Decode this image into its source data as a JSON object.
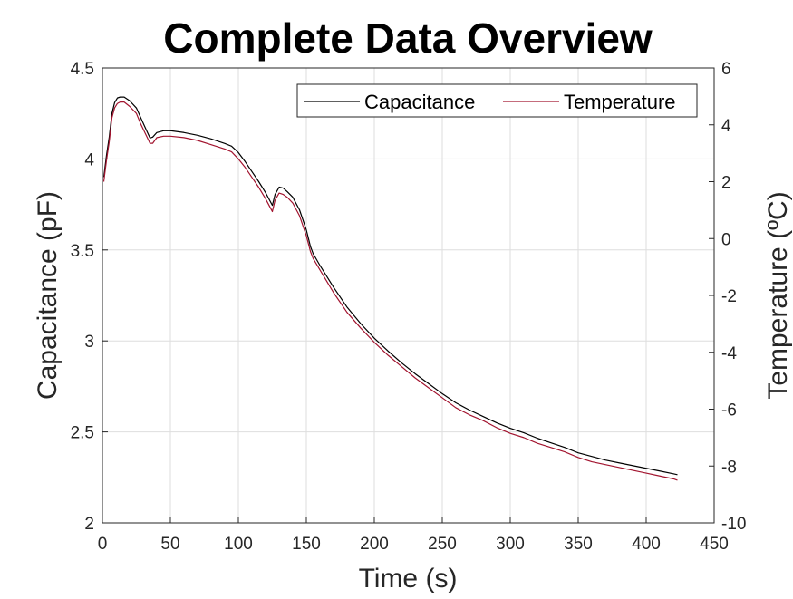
{
  "chart_data": {
    "type": "line",
    "title": "Complete Data Overview",
    "xlabel": "Time (s)",
    "ylabel_left": "Capacitance (pF)",
    "ylabel_right": "Temperature (ºC)",
    "xlim": [
      0,
      450
    ],
    "ylim_left": [
      2,
      4.5
    ],
    "ylim_right": [
      -10,
      6
    ],
    "x_ticks": [
      "0",
      "50",
      "100",
      "150",
      "200",
      "250",
      "300",
      "350",
      "400",
      "450"
    ],
    "y_left_ticks": [
      "2",
      "2.5",
      "3",
      "3.5",
      "4",
      "4.5"
    ],
    "y_right_ticks": [
      "-10",
      "-8",
      "-6",
      "-4",
      "-2",
      "0",
      "2",
      "4",
      "6"
    ],
    "grid": true,
    "legend_position": "top-right",
    "series": [
      {
        "name": "Capacitance",
        "axis": "left",
        "color": "#000000",
        "x": [
          1,
          3,
          5,
          7,
          9,
          11,
          13,
          16,
          20,
          25,
          28,
          31,
          35,
          37,
          40,
          45,
          50,
          60,
          70,
          80,
          90,
          95,
          100,
          105,
          110,
          115,
          120,
          125,
          127,
          130,
          133,
          136,
          140,
          145,
          150,
          153,
          155,
          160,
          170,
          180,
          190,
          200,
          210,
          220,
          230,
          240,
          250,
          260,
          270,
          280,
          290,
          300,
          310,
          320,
          330,
          340,
          350,
          360,
          370,
          380,
          390,
          400,
          410,
          420,
          423
        ],
        "values": [
          3.9,
          4.02,
          4.12,
          4.25,
          4.31,
          4.335,
          4.34,
          4.34,
          4.32,
          4.28,
          4.23,
          4.18,
          4.115,
          4.12,
          4.145,
          4.155,
          4.155,
          4.145,
          4.13,
          4.11,
          4.085,
          4.07,
          4.035,
          3.985,
          3.93,
          3.875,
          3.815,
          3.745,
          3.805,
          3.845,
          3.84,
          3.82,
          3.79,
          3.72,
          3.61,
          3.52,
          3.48,
          3.415,
          3.295,
          3.185,
          3.095,
          3.015,
          2.945,
          2.88,
          2.82,
          2.765,
          2.71,
          2.66,
          2.62,
          2.585,
          2.55,
          2.52,
          2.495,
          2.465,
          2.44,
          2.415,
          2.385,
          2.365,
          2.345,
          2.33,
          2.315,
          2.3,
          2.285,
          2.27,
          2.265
        ]
      },
      {
        "name": "Temperature",
        "axis": "right",
        "color": "#A2142F",
        "x": [
          1,
          3,
          5,
          7,
          9,
          11,
          13,
          16,
          20,
          25,
          28,
          31,
          35,
          37,
          40,
          45,
          50,
          60,
          70,
          80,
          90,
          95,
          100,
          105,
          110,
          115,
          120,
          125,
          127,
          130,
          133,
          136,
          140,
          145,
          150,
          153,
          155,
          160,
          170,
          180,
          190,
          200,
          210,
          220,
          230,
          240,
          250,
          260,
          270,
          280,
          290,
          300,
          310,
          320,
          330,
          340,
          350,
          360,
          370,
          380,
          390,
          400,
          410,
          420,
          423
        ],
        "values": [
          2.0,
          2.75,
          3.4,
          4.25,
          4.6,
          4.75,
          4.8,
          4.8,
          4.65,
          4.4,
          4.05,
          3.75,
          3.35,
          3.35,
          3.55,
          3.6,
          3.6,
          3.55,
          3.45,
          3.3,
          3.15,
          3.05,
          2.8,
          2.5,
          2.15,
          1.8,
          1.4,
          0.95,
          1.35,
          1.6,
          1.55,
          1.45,
          1.25,
          0.8,
          0.1,
          -0.45,
          -0.7,
          -1.1,
          -1.9,
          -2.6,
          -3.15,
          -3.65,
          -4.1,
          -4.5,
          -4.9,
          -5.25,
          -5.6,
          -5.95,
          -6.2,
          -6.4,
          -6.65,
          -6.85,
          -7.0,
          -7.2,
          -7.35,
          -7.5,
          -7.7,
          -7.85,
          -7.95,
          -8.05,
          -8.15,
          -8.25,
          -8.35,
          -8.45,
          -8.5
        ]
      }
    ]
  }
}
